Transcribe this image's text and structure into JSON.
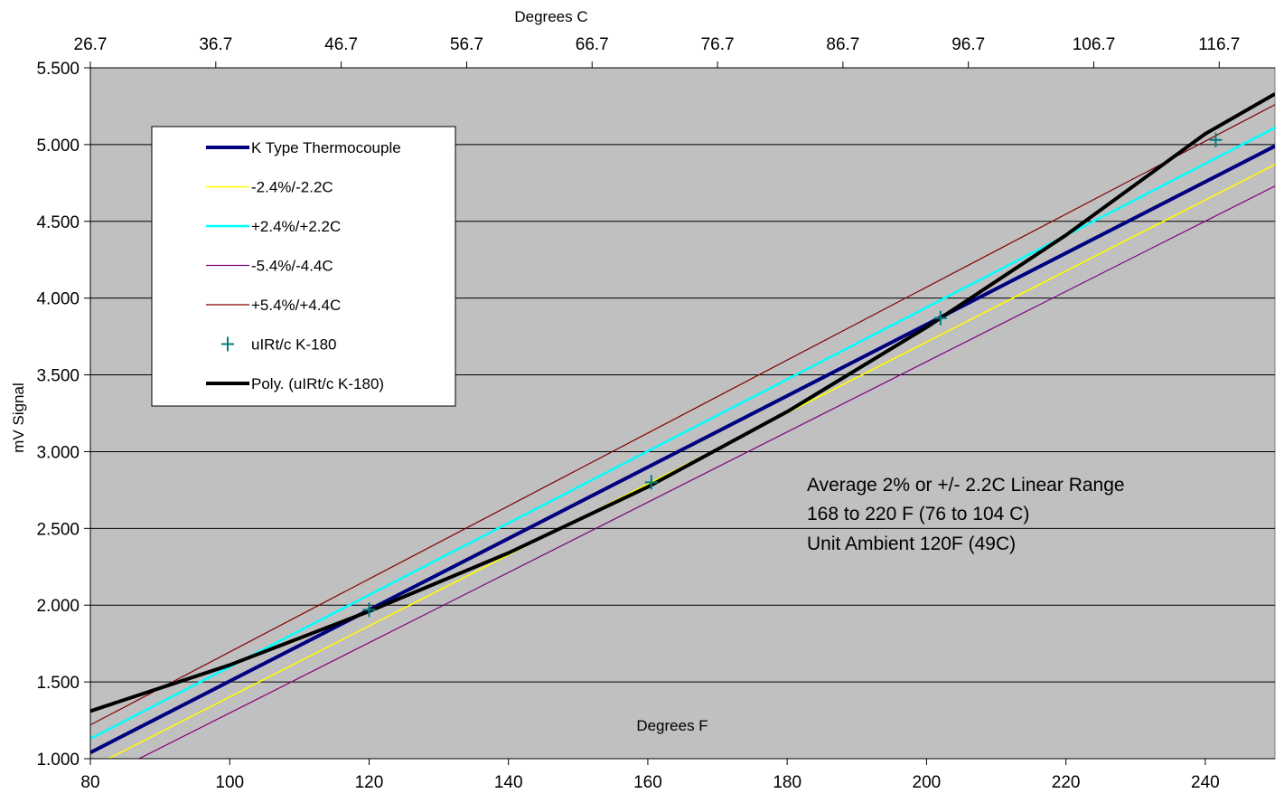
{
  "chart_data": {
    "type": "line",
    "xlabel": "Degrees F",
    "x2label": "Degrees C",
    "ylabel": "mV Signal",
    "xlim": [
      80,
      250
    ],
    "ylim": [
      1.0,
      5.5
    ],
    "x_ticks": [
      80,
      100,
      120,
      140,
      160,
      180,
      200,
      220,
      240
    ],
    "y_ticks": [
      1.0,
      1.5,
      2.0,
      2.5,
      3.0,
      3.5,
      4.0,
      4.5,
      5.0,
      5.5
    ],
    "y_tick_labels": [
      "1.000",
      "1.500",
      "2.000",
      "2.500",
      "3.000",
      "3.500",
      "4.000",
      "4.500",
      "5.000",
      "5.500"
    ],
    "x2_ticks": [
      80,
      98,
      116,
      134,
      152,
      170,
      188,
      206,
      224,
      242
    ],
    "x2_tick_labels": [
      "26.7",
      "36.7",
      "46.7",
      "56.7",
      "66.7",
      "76.7",
      "86.7",
      "96.7",
      "106.7",
      "116.7"
    ],
    "grid": "horizontal",
    "plot_background": "#c0c0c0",
    "legend_position": "upper-left",
    "series": [
      {
        "name": "K Type Thermocouple",
        "kind": "line",
        "color": "#000080",
        "x": [
          80,
          250
        ],
        "y": [
          1.04,
          4.99
        ]
      },
      {
        "name": "-2.4%/-2.2C",
        "kind": "line",
        "color": "#ffff00",
        "x": [
          80,
          250
        ],
        "y": [
          0.94,
          4.87
        ]
      },
      {
        "name": "+2.4%/+2.2C",
        "kind": "line",
        "color": "#00ffff",
        "x": [
          80,
          250
        ],
        "y": [
          1.13,
          5.11
        ]
      },
      {
        "name": "-5.4%/-4.4C",
        "kind": "line",
        "color": "#800080",
        "x": [
          80,
          250
        ],
        "y": [
          0.84,
          4.73
        ]
      },
      {
        "name": "+5.4%/+4.4C",
        "kind": "line",
        "color": "#800000",
        "x": [
          80,
          250
        ],
        "y": [
          1.22,
          5.26
        ]
      },
      {
        "name": "uIRt/c K-180",
        "kind": "scatter",
        "color": "#008080",
        "x": [
          120,
          160.5,
          202,
          241.5
        ],
        "y": [
          1.97,
          2.8,
          3.87,
          5.03
        ]
      },
      {
        "name": "Poly. (uIRt/c K-180)",
        "kind": "line",
        "color": "#000000",
        "x": [
          80,
          100,
          120,
          140,
          160,
          180,
          200,
          220,
          240,
          250
        ],
        "y": [
          1.31,
          1.61,
          1.96,
          2.34,
          2.77,
          3.26,
          3.81,
          4.41,
          5.07,
          5.33
        ]
      }
    ],
    "annotations": [
      "Average 2% or +/- 2.2C Linear Range",
      "168 to 220 F (76 to 104 C)",
      "Unit Ambient 120F (49C)"
    ]
  }
}
